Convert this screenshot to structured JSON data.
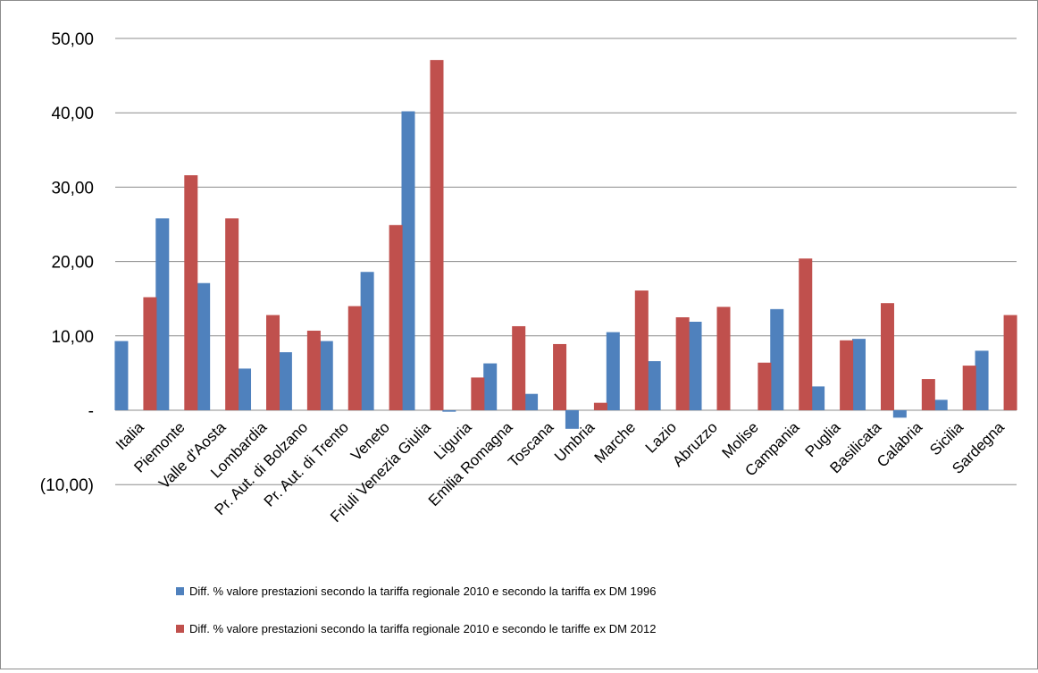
{
  "chart_data": {
    "type": "bar",
    "title": "",
    "xlabel": "",
    "ylabel": "",
    "ylim": [
      -10,
      50
    ],
    "yticks": [
      -10,
      0,
      10,
      20,
      30,
      40,
      50
    ],
    "ytick_labels": [
      "(10,00)",
      "-",
      "10,00",
      "20,00",
      "30,00",
      "40,00",
      "50,00"
    ],
    "grid": "horizontal",
    "legend_position": "bottom",
    "categories": [
      "Italia",
      "Piemonte",
      "Valle d'Aosta",
      "Lombardia",
      "Pr. Aut. di Bolzano",
      "Pr. Aut. di Trento",
      "Veneto",
      "Friuli Venezia Giulia",
      "Liguria",
      "Emilia Romagna",
      "Toscana",
      "Umbria",
      "Marche",
      "Lazio",
      "Abruzzo",
      "Molise",
      "Campania",
      "Puglia",
      "Basilicata",
      "Calabria",
      "Sicilia",
      "Sardegna"
    ],
    "series": [
      {
        "name": "Diff. % valore prestazioni secondo la tariffa regionale 2010 e secondo la tariffa ex DM 1996",
        "color": "#4f81bd",
        "values": [
          9.3,
          25.8,
          17.1,
          5.6,
          7.8,
          9.3,
          18.6,
          40.2,
          -0.2,
          6.3,
          2.2,
          -2.5,
          10.5,
          6.6,
          11.9,
          0,
          13.6,
          3.2,
          9.6,
          -1.0,
          1.4,
          8.0
        ]
      },
      {
        "name": "Diff.  % valore prestazioni secondo la tariffa regionale 2010 e secondo le tariffe ex DM 2012",
        "color": "#c0504d",
        "values": [
          15.2,
          31.6,
          25.8,
          12.8,
          10.7,
          14.0,
          24.9,
          47.1,
          4.4,
          11.3,
          8.9,
          1.0,
          16.1,
          12.5,
          13.9,
          6.4,
          20.4,
          9.4,
          14.4,
          4.2,
          6.0,
          12.8
        ]
      }
    ]
  }
}
